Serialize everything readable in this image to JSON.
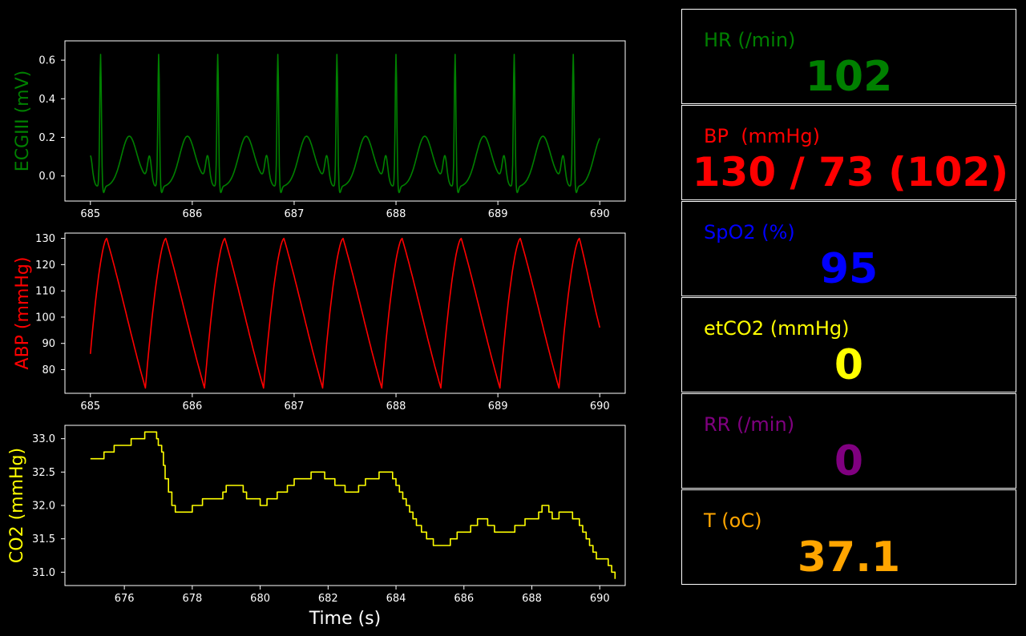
{
  "colors": {
    "ecg": "#008000",
    "abp": "#ff0000",
    "co2": "#ffff00",
    "hr": "#008000",
    "bp": "#ff0000",
    "spo2": "#0000ff",
    "etco2": "#ffff00",
    "rr": "#800080",
    "temp": "#ffa500"
  },
  "vitals": [
    {
      "label": "HR (/min)",
      "value": "102",
      "color": "#008000"
    },
    {
      "label": "BP  (mmHg)",
      "value": "130 / 73 (102)",
      "color": "#ff0000"
    },
    {
      "label": "SpO2 (%)",
      "value": "95",
      "color": "#0000ff"
    },
    {
      "label": "etCO2 (mmHg)",
      "value": "0",
      "color": "#ffff00"
    },
    {
      "label": "RR (/min)",
      "value": "0",
      "color": "#800080"
    },
    {
      "label": "T (oC)",
      "value": "37.1",
      "color": "#ffa500"
    }
  ],
  "chart_data": [
    {
      "type": "line",
      "ylabel": "ECGIII (mV)",
      "color": "#008000",
      "xlim": [
        684.75,
        690.25
      ],
      "ylim": [
        -0.13,
        0.7
      ],
      "xticks": [
        685,
        686,
        687,
        688,
        689,
        690
      ],
      "yticks": [
        0.0,
        0.2,
        0.4,
        0.6
      ],
      "ytick_labels": [
        "0.0",
        "0.2",
        "0.4",
        "0.6"
      ],
      "beats_r_peak_times": [
        685.1,
        685.67,
        686.25,
        686.84,
        687.42,
        688.0,
        688.58,
        689.16,
        689.74
      ],
      "r_peak_mV": 0.67,
      "t_wave_mV": 0.21,
      "baseline_min_mV": -0.09,
      "x_start": 685.0,
      "x_end": 690.0,
      "end_value_mV": 0.18
    },
    {
      "type": "line",
      "ylabel": "ABP (mmHg)",
      "color": "#ff0000",
      "xlim": [
        684.75,
        690.25
      ],
      "ylim": [
        71,
        132
      ],
      "xticks": [
        685,
        686,
        687,
        688,
        689,
        690
      ],
      "yticks": [
        80,
        90,
        100,
        110,
        120,
        130
      ],
      "systolic_peak_times": [
        685.16,
        685.74,
        686.32,
        686.9,
        687.48,
        688.06,
        688.64,
        689.22,
        689.8
      ],
      "diastolic_trough_times": [
        685.54,
        686.12,
        686.7,
        687.28,
        687.86,
        688.44,
        689.02,
        689.6
      ],
      "systolic_mmHg": 130,
      "diastolic_mmHg": 73,
      "start_value": 86,
      "end_value": 96
    },
    {
      "type": "line",
      "step": true,
      "ylabel": "CO2 (mmHg)",
      "xlabel": "Time (s)",
      "color": "#ffff00",
      "xlim": [
        674.25,
        690.75
      ],
      "ylim": [
        30.8,
        33.2
      ],
      "xticks": [
        676,
        678,
        680,
        682,
        684,
        686,
        688,
        690
      ],
      "yticks": [
        31.0,
        31.5,
        32.0,
        32.5,
        33.0
      ],
      "ytick_labels": [
        "31.0",
        "31.5",
        "32.0",
        "32.5",
        "33.0"
      ],
      "points": [
        [
          675.0,
          32.7
        ],
        [
          675.4,
          32.8
        ],
        [
          675.7,
          32.9
        ],
        [
          676.2,
          33.0
        ],
        [
          676.6,
          33.1
        ],
        [
          676.95,
          33.0
        ],
        [
          677.0,
          32.9
        ],
        [
          677.1,
          32.8
        ],
        [
          677.15,
          32.6
        ],
        [
          677.2,
          32.4
        ],
        [
          677.3,
          32.2
        ],
        [
          677.4,
          32.0
        ],
        [
          677.5,
          31.9
        ],
        [
          678.0,
          32.0
        ],
        [
          678.3,
          32.1
        ],
        [
          678.9,
          32.2
        ],
        [
          679.0,
          32.3
        ],
        [
          679.5,
          32.2
        ],
        [
          679.6,
          32.1
        ],
        [
          680.0,
          32.0
        ],
        [
          680.2,
          32.1
        ],
        [
          680.5,
          32.2
        ],
        [
          680.8,
          32.3
        ],
        [
          681.0,
          32.4
        ],
        [
          681.5,
          32.5
        ],
        [
          681.9,
          32.4
        ],
        [
          682.2,
          32.3
        ],
        [
          682.5,
          32.2
        ],
        [
          682.9,
          32.3
        ],
        [
          683.1,
          32.4
        ],
        [
          683.5,
          32.5
        ],
        [
          683.9,
          32.4
        ],
        [
          684.0,
          32.3
        ],
        [
          684.1,
          32.2
        ],
        [
          684.2,
          32.1
        ],
        [
          684.3,
          32.0
        ],
        [
          684.4,
          31.9
        ],
        [
          684.5,
          31.8
        ],
        [
          684.6,
          31.7
        ],
        [
          684.75,
          31.6
        ],
        [
          684.9,
          31.5
        ],
        [
          685.1,
          31.4
        ],
        [
          685.6,
          31.5
        ],
        [
          685.8,
          31.6
        ],
        [
          686.2,
          31.7
        ],
        [
          686.4,
          31.8
        ],
        [
          686.7,
          31.7
        ],
        [
          686.9,
          31.6
        ],
        [
          687.5,
          31.7
        ],
        [
          687.8,
          31.8
        ],
        [
          688.2,
          31.9
        ],
        [
          688.3,
          32.0
        ],
        [
          688.5,
          31.9
        ],
        [
          688.6,
          31.8
        ],
        [
          688.8,
          31.9
        ],
        [
          689.2,
          31.8
        ],
        [
          689.4,
          31.7
        ],
        [
          689.5,
          31.6
        ],
        [
          689.6,
          31.5
        ],
        [
          689.7,
          31.4
        ],
        [
          689.8,
          31.3
        ],
        [
          689.9,
          31.2
        ],
        [
          690.25,
          31.1
        ],
        [
          690.35,
          31.0
        ],
        [
          690.45,
          30.9
        ]
      ]
    }
  ]
}
